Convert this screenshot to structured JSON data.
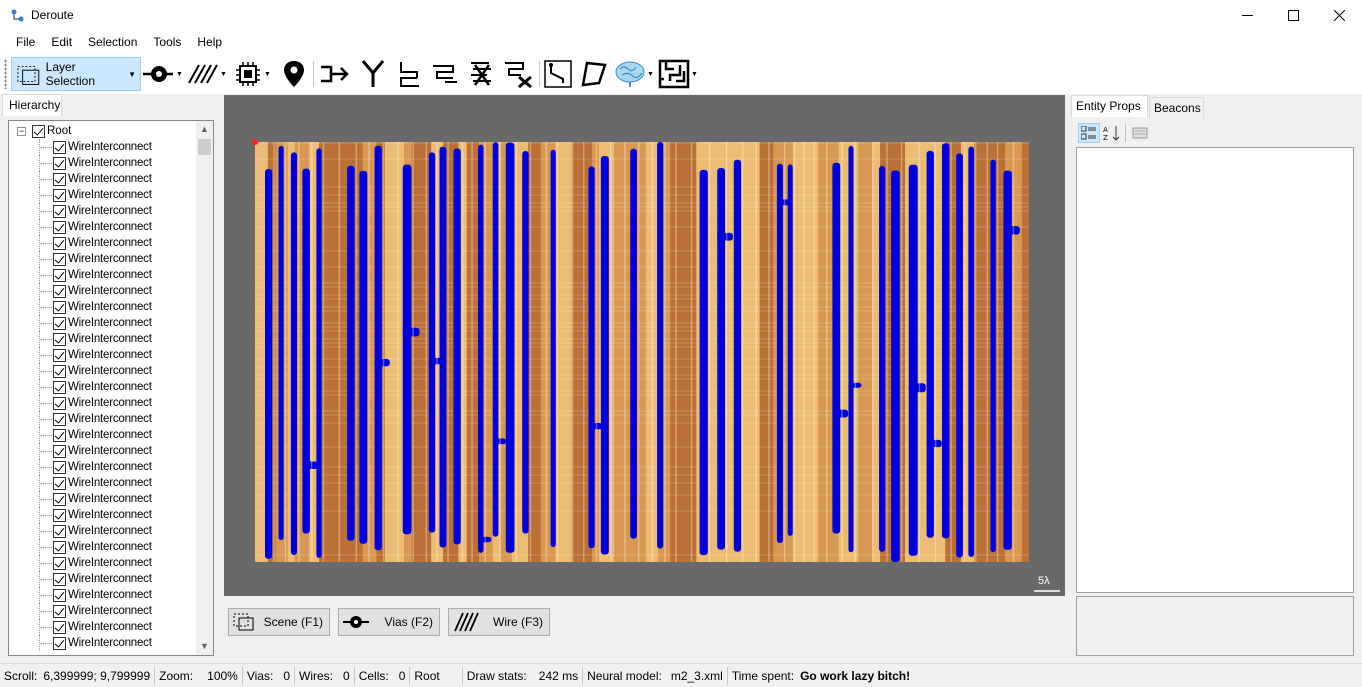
{
  "window": {
    "title": "Deroute",
    "minimize": "—",
    "maximize": "☐",
    "close": "✕"
  },
  "menu": [
    "File",
    "Edit",
    "Selection",
    "Tools",
    "Help"
  ],
  "toolbar": {
    "layer_selection_label": "Layer Selection",
    "icons": [
      "layer-selection-icon",
      "via-icon",
      "wire-icon",
      "cell-icon",
      "beacon-icon",
      "connect-icon",
      "merge-icon",
      "route-icon",
      "route-multi-icon",
      "delete-route-icon",
      "delete-routes-icon",
      "select-wire-icon",
      "polygon-icon",
      "neural-brain-icon",
      "maze-icon"
    ]
  },
  "hierarchy": {
    "tab_label": "Hierarchy",
    "root_label": "Root",
    "expander": "−",
    "items": [
      "WireInterconnect",
      "WireInterconnect",
      "WireInterconnect",
      "WireInterconnect",
      "WireInterconnect",
      "WireInterconnect",
      "WireInterconnect",
      "WireInterconnect",
      "WireInterconnect",
      "WireInterconnect",
      "WireInterconnect",
      "WireInterconnect",
      "WireInterconnect",
      "WireInterconnect",
      "WireInterconnect",
      "WireInterconnect",
      "WireInterconnect",
      "WireInterconnect",
      "WireInterconnect",
      "WireInterconnect",
      "WireInterconnect",
      "WireInterconnect",
      "WireInterconnect",
      "WireInterconnect",
      "WireInterconnect",
      "WireInterconnect",
      "WireInterconnect",
      "WireInterconnect",
      "WireInterconnect",
      "WireInterconnect",
      "WireInterconnect",
      "WireInterconnect"
    ]
  },
  "canvas": {
    "scale_label": "5λ",
    "wire_color": "#0000dd"
  },
  "modes": [
    {
      "label": "Scene (F1)"
    },
    {
      "label": "Vias (F2)"
    },
    {
      "label": "Wire (F3)"
    }
  ],
  "right_panel": {
    "tab_props": "Entity Props",
    "tab_beacons": "Beacons"
  },
  "status": {
    "scroll_label": "Scroll:",
    "scroll_value": "6,399999; 9,799999",
    "zoom_label": "Zoom:",
    "zoom_value": "100%",
    "vias_label": "Vias:",
    "vias_value": "0",
    "wires_label": "Wires:",
    "wires_value": "0",
    "cells_label": "Cells:",
    "cells_value": "0",
    "root_value": "Root",
    "draw_label": "Draw stats:",
    "draw_value": "242 ms",
    "neural_label": "Neural model:",
    "neural_value": "m2_3.xml",
    "time_label": "Time spent:",
    "time_value": "Go work lazy bitch!"
  }
}
